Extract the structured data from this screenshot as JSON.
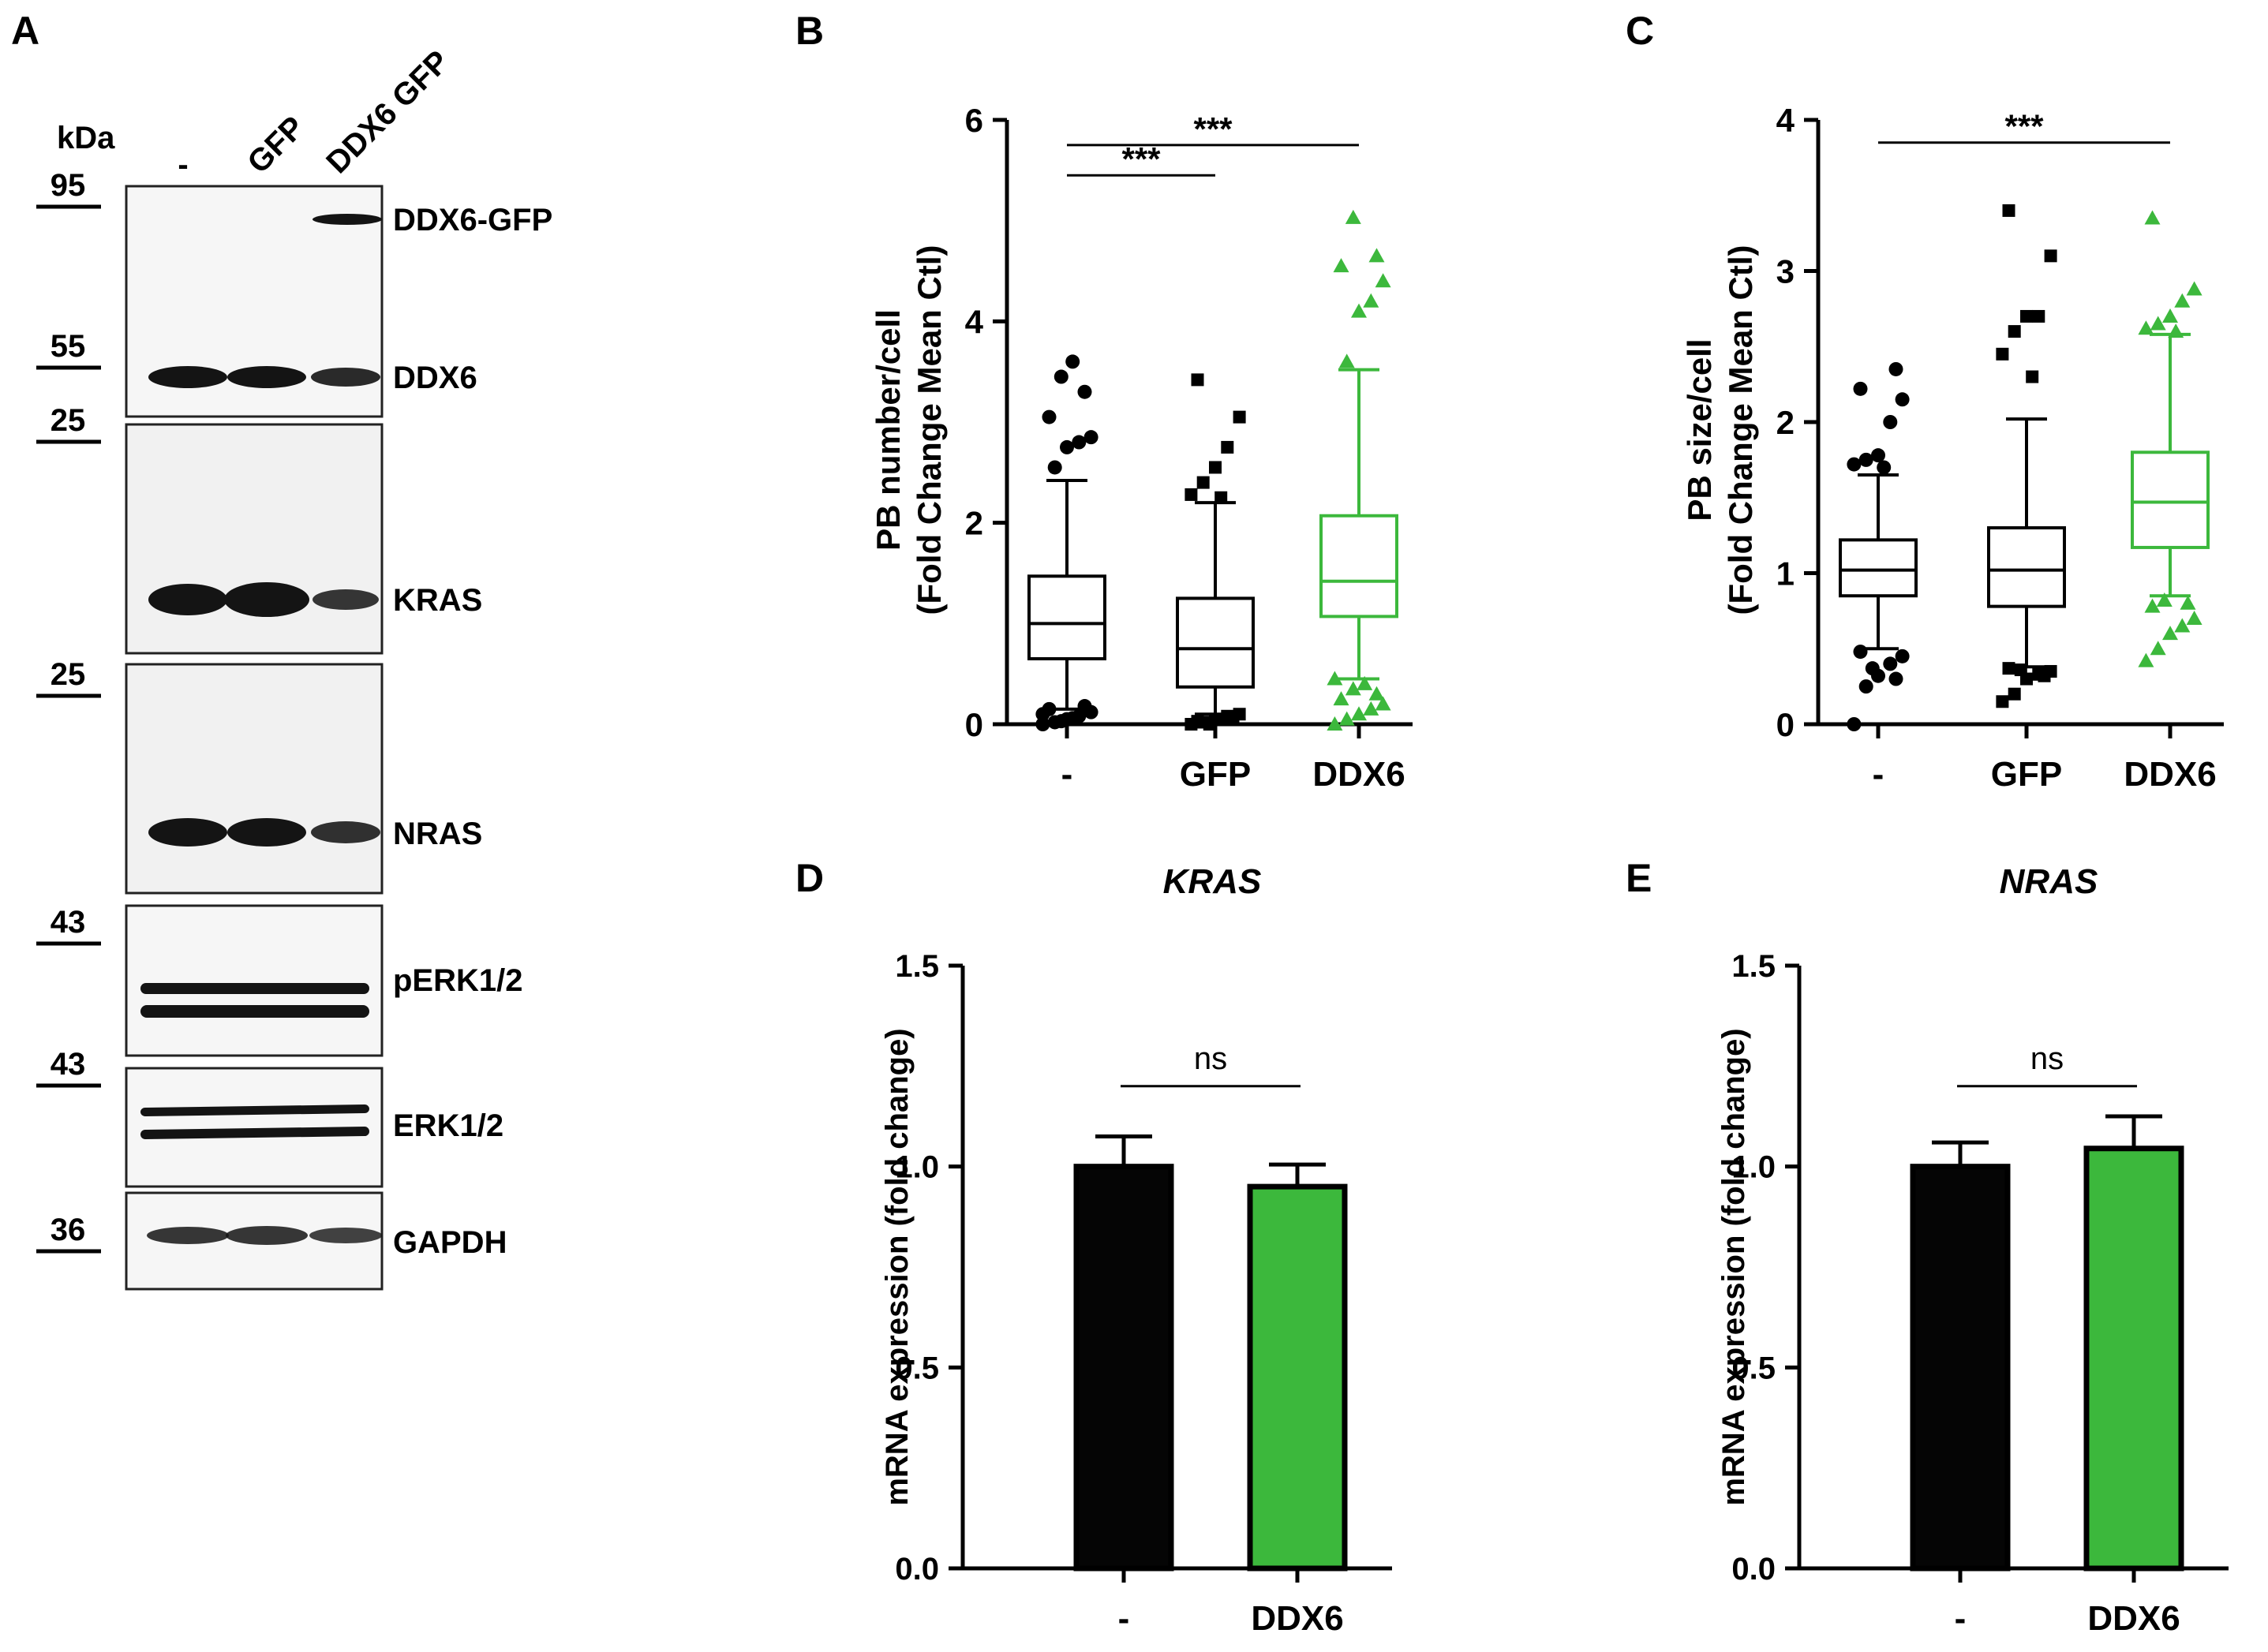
{
  "panel_letters": {
    "a": "A",
    "b": "B",
    "c": "C",
    "d": "D",
    "e": "E"
  },
  "western_blot": {
    "kda_label": "kDa",
    "lanes": [
      "-",
      "GFP",
      "DDX6 GFP"
    ],
    "markers": [
      "95",
      "55",
      "25",
      "25",
      "43",
      "43",
      "36"
    ],
    "bands": [
      "DDX6-GFP",
      "DDX6",
      "KRAS",
      "NRAS",
      "pERK1/2",
      "ERK1/2",
      "GAPDH"
    ],
    "colors": {
      "band": "#141414",
      "frame": "#222222"
    }
  },
  "chart_data": [
    {
      "id": "B",
      "type": "box",
      "categories": [
        "-",
        "GFP",
        "DDX6"
      ],
      "ylabel_line1": "PB number/cell",
      "ylabel_line2": "(Fold Change Mean Ctl)",
      "yticks": [
        "0",
        "2",
        "4",
        "6"
      ],
      "ylim": [
        0,
        6
      ],
      "colors": [
        "#000000",
        "#000000",
        "#3cb83c"
      ],
      "markers": [
        "circle",
        "square",
        "triangle"
      ],
      "boxes": [
        {
          "whisker_low": 0.15,
          "q1": 0.65,
          "median": 1.0,
          "q3": 1.47,
          "whisker_high": 2.42,
          "outliers": [
            0,
            0.02,
            0.05,
            0.08,
            0.12,
            0.15,
            0.18,
            0.03,
            0.06,
            0.1,
            2.55,
            2.75,
            2.8,
            2.85,
            3.05,
            3.3,
            3.45,
            3.6
          ]
        },
        {
          "whisker_low": 0.1,
          "q1": 0.37,
          "median": 0.75,
          "q3": 1.25,
          "whisker_high": 2.2,
          "outliers": [
            0,
            0.02,
            0.05,
            0.08,
            0.1,
            0.03,
            0.06,
            0.0,
            2.25,
            2.28,
            2.4,
            2.55,
            2.75,
            3.05,
            3.42
          ]
        },
        {
          "whisker_low": 0.45,
          "q1": 1.07,
          "median": 1.42,
          "q3": 2.07,
          "whisker_high": 3.52,
          "outliers": [
            0,
            0.05,
            0.1,
            0.15,
            0.2,
            0.25,
            0.3,
            0.35,
            0.4,
            0.45,
            3.6,
            4.1,
            4.2,
            4.4,
            4.55,
            4.65,
            5.03
          ]
        }
      ],
      "significance": [
        {
          "from": 0,
          "to": 1,
          "label": "***",
          "y": 5.45
        },
        {
          "from": 0,
          "to": 2,
          "label": "***",
          "y": 5.75
        }
      ]
    },
    {
      "id": "C",
      "type": "box",
      "categories": [
        "-",
        "GFP",
        "DDX6"
      ],
      "ylabel_line1": "PB size/cell",
      "ylabel_line2": "(Fold Change Mean Ctl)",
      "yticks": [
        "0",
        "1",
        "2",
        "3",
        "4"
      ],
      "ylim": [
        0,
        4
      ],
      "colors": [
        "#000000",
        "#000000",
        "#3cb83c"
      ],
      "markers": [
        "circle",
        "square",
        "triangle"
      ],
      "boxes": [
        {
          "whisker_low": 0.5,
          "q1": 0.85,
          "median": 1.02,
          "q3": 1.22,
          "whisker_high": 1.65,
          "outliers": [
            0,
            0.25,
            0.32,
            0.4,
            0.45,
            0.48,
            0.3,
            0.37,
            1.7,
            1.72,
            1.75,
            1.78,
            2.0,
            2.15,
            2.22,
            2.35
          ]
        },
        {
          "whisker_low": 0.38,
          "q1": 0.78,
          "median": 1.02,
          "q3": 1.3,
          "whisker_high": 2.02,
          "outliers": [
            0.15,
            0.2,
            0.3,
            0.33,
            0.35,
            0.37,
            0.32,
            0.36,
            2.3,
            2.45,
            2.6,
            2.7,
            2.7,
            3.1,
            3.4
          ]
        },
        {
          "whisker_low": 0.85,
          "q1": 1.17,
          "median": 1.47,
          "q3": 1.8,
          "whisker_high": 2.58,
          "outliers": [
            0.42,
            0.5,
            0.6,
            0.65,
            0.7,
            0.78,
            0.8,
            0.82,
            2.6,
            2.62,
            2.65,
            2.7,
            2.8,
            2.88,
            3.35
          ]
        }
      ],
      "significance": [
        {
          "from": 0,
          "to": 2,
          "label": "***",
          "y": 3.85
        }
      ]
    },
    {
      "id": "D",
      "type": "bar",
      "title": "KRAS",
      "categories": [
        "-",
        "DDX6"
      ],
      "values": [
        1.0,
        0.95
      ],
      "errors": [
        0.075,
        0.055
      ],
      "colors": [
        "#050505",
        "#3cb83c"
      ],
      "ylabel": "mRNA expression (fold change)",
      "yticks": [
        "0.0",
        "0.5",
        "1.0",
        "1.5"
      ],
      "ylim": [
        0,
        1.5
      ],
      "significance": {
        "label": "ns",
        "y": 1.2
      }
    },
    {
      "id": "E",
      "type": "bar",
      "title": "NRAS",
      "categories": [
        "-",
        "DDX6"
      ],
      "values": [
        1.0,
        1.045
      ],
      "errors": [
        0.06,
        0.08
      ],
      "colors": [
        "#050505",
        "#3cb83c"
      ],
      "ylabel": "mRNA expression (fold change)",
      "yticks": [
        "0.0",
        "0.5",
        "1.0",
        "1.5"
      ],
      "ylim": [
        0,
        1.5
      ],
      "significance": {
        "label": "ns",
        "y": 1.2
      }
    }
  ]
}
